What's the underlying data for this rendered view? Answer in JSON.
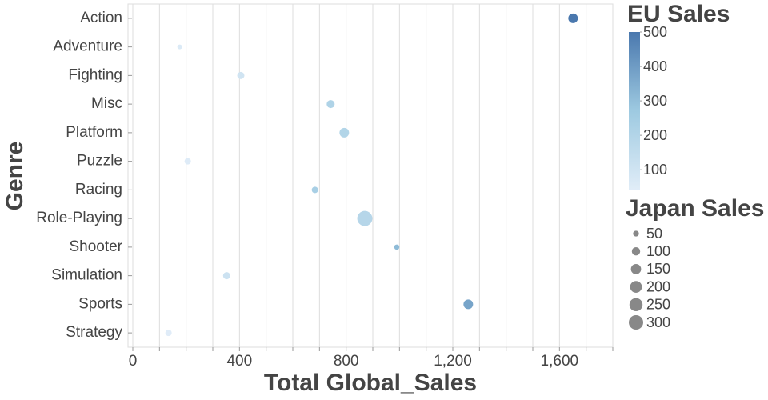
{
  "chart_data": {
    "type": "scatter",
    "categories": [
      "Action",
      "Adventure",
      "Fighting",
      "Misc",
      "Platform",
      "Puzzle",
      "Racing",
      "Role-Playing",
      "Shooter",
      "Simulation",
      "Sports",
      "Strategy"
    ],
    "values": [
      1651,
      176,
      405,
      742,
      793,
      206,
      683,
      870,
      990,
      352,
      1258,
      134
    ],
    "color_values": [
      500,
      60,
      100,
      210,
      200,
      50,
      235,
      188,
      313,
      113,
      376,
      45
    ],
    "size_values": [
      133,
      33,
      75,
      92,
      133,
      59,
      59,
      330,
      40,
      75,
      133,
      59
    ],
    "x_label": "Total Global_Sales",
    "y_label": "Genre",
    "xlim": [
      0,
      1800
    ],
    "xticks": [
      0,
      400,
      800,
      {
        "value": 1200,
        "label": "1,200"
      },
      {
        "value": 1600,
        "label": "1,600"
      }
    ],
    "xgrid": [
      0,
      100,
      200,
      300,
      400,
      500,
      600,
      700,
      800,
      900,
      1000,
      1100,
      1200,
      1300,
      1400,
      1500,
      1600,
      1700,
      1800
    ],
    "grid": true,
    "color_legend": {
      "title": "EU Sales",
      "lim": [
        40,
        500
      ],
      "ticks": [
        100,
        200,
        300,
        400,
        500
      ],
      "colors": [
        "#e1edf8",
        "#9ecae1",
        "#4a78ae"
      ]
    },
    "size_legend": {
      "title": "Japan Sales",
      "values": [
        50,
        100,
        150,
        200,
        250,
        300
      ],
      "color": "#888888"
    }
  }
}
